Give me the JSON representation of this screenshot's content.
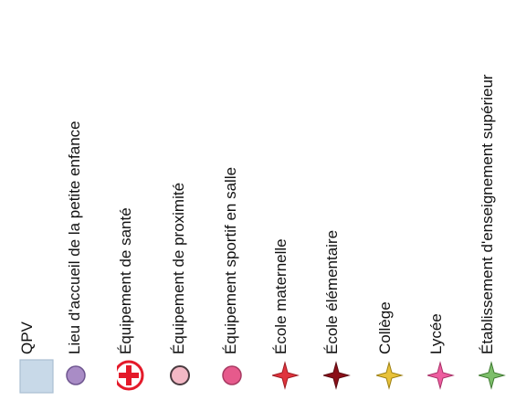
{
  "legend": {
    "items": [
      {
        "id": "qpv",
        "label": "QPV",
        "symbol": "rect-icon",
        "fill": "#c8d9e8",
        "stroke": "#a9bfd3"
      },
      {
        "id": "petite-enfance",
        "label": "Lieu d'accueil de la petite enfance",
        "symbol": "circle-icon",
        "fill": "#a98cc6",
        "stroke": "#6f5690"
      },
      {
        "id": "sante",
        "label": "Équipement de santé",
        "symbol": "health-cross-icon",
        "fill": "#ffffff",
        "stroke": "#e41a2a"
      },
      {
        "id": "proximite",
        "label": "Équipement de proximité",
        "symbol": "circle-icon",
        "fill": "#f3b8c5",
        "stroke": "#4a3b40"
      },
      {
        "id": "sportif",
        "label": "Équipement sportif en salle",
        "symbol": "circle-icon",
        "fill": "#e65a8c",
        "stroke": "#a83a62"
      },
      {
        "id": "maternelle",
        "label": "École maternelle",
        "symbol": "star4-icon",
        "fill": "#e0343d",
        "stroke": "#9e1b22"
      },
      {
        "id": "elementaire",
        "label": "École élémentaire",
        "symbol": "star4-icon",
        "fill": "#8b0f18",
        "stroke": "#5a0a10"
      },
      {
        "id": "college",
        "label": "Collège",
        "symbol": "star4-icon",
        "fill": "#e8c23a",
        "stroke": "#9c7f12"
      },
      {
        "id": "lycee",
        "label": "Lycée",
        "symbol": "star4-icon",
        "fill": "#ee5ea0",
        "stroke": "#a83066"
      },
      {
        "id": "superieur",
        "label": "Établissement d'enseignement supérieur",
        "symbol": "star4-icon",
        "fill": "#7dbf6a",
        "stroke": "#3f7a31"
      }
    ]
  }
}
